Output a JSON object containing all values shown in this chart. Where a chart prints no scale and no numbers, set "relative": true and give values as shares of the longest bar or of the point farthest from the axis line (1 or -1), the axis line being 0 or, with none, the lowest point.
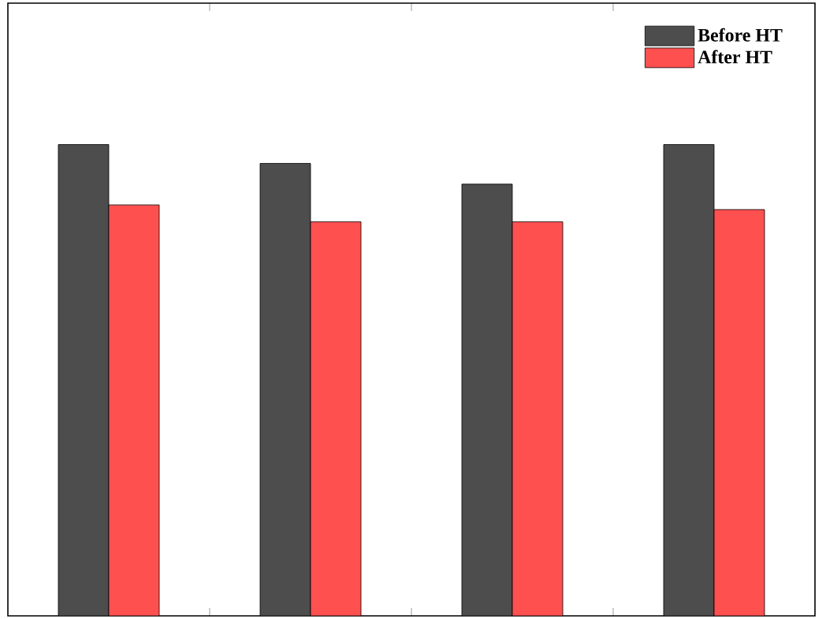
{
  "chart_data": {
    "type": "bar",
    "relative": true,
    "categories": [
      null,
      null,
      null,
      null
    ],
    "series": [
      {
        "name": "Before HT",
        "color": "#4d4d4d",
        "values": [
          1,
          0.96,
          0.916,
          1
        ]
      },
      {
        "name": "After HT",
        "color": "#ff5050",
        "values": [
          0.872,
          0.836,
          0.836,
          0.862
        ]
      }
    ],
    "legend": "top right"
  }
}
